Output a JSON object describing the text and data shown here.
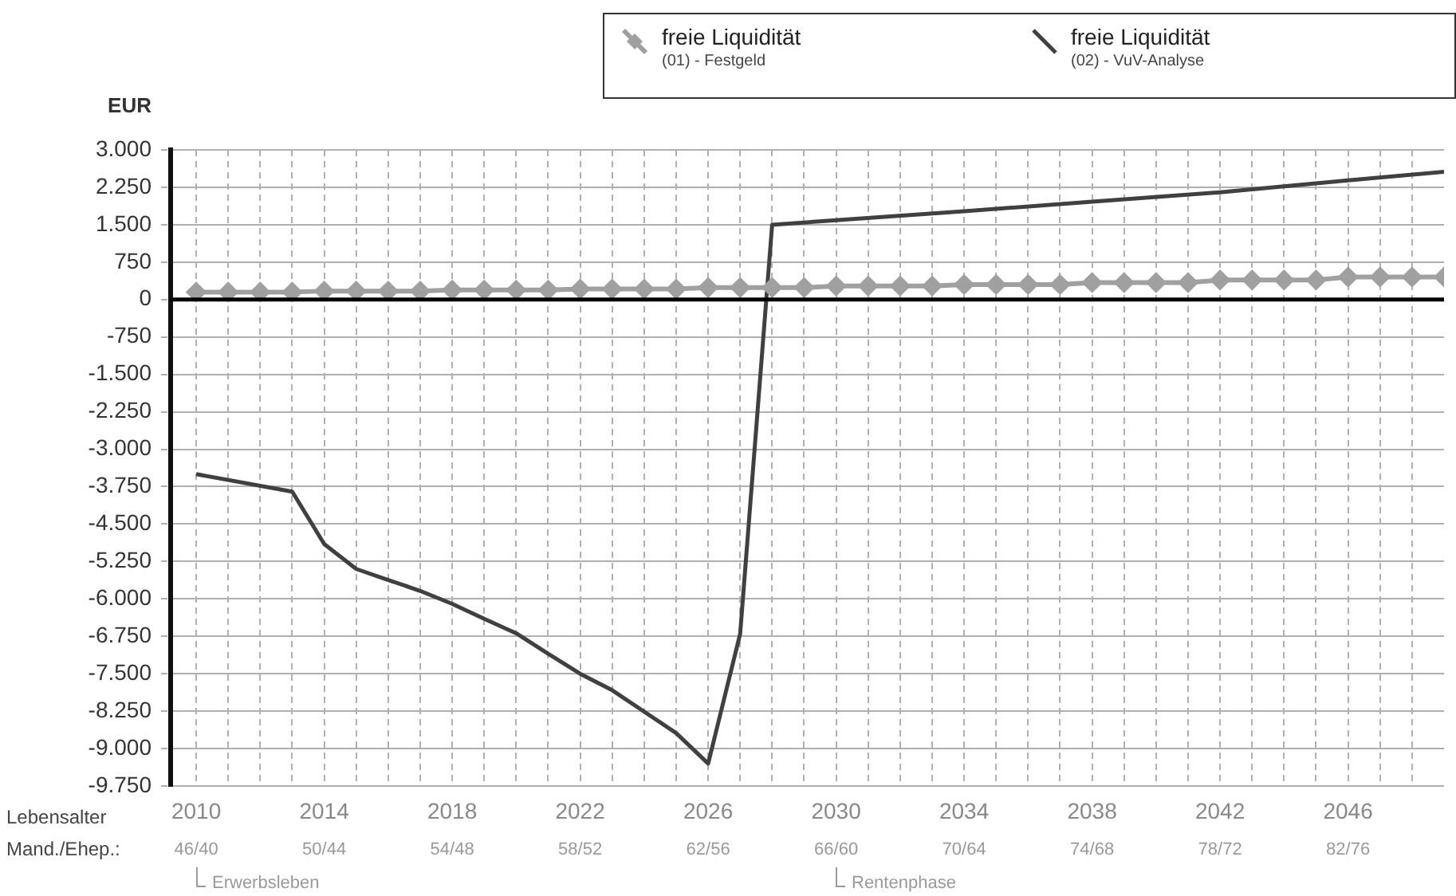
{
  "chart_data": {
    "type": "line",
    "ylabel": "EUR",
    "xlabel": "Lebensalter",
    "xlim": [
      2009.2,
      2049
    ],
    "ylim": [
      -9750,
      3000
    ],
    "xticks": [
      2010,
      {
        "value": 2011,
        "label": null
      },
      {
        "value": 2012,
        "label": null
      },
      {
        "value": 2013,
        "label": null
      },
      2014,
      {
        "value": 2015,
        "label": null
      },
      {
        "value": 2016,
        "label": null
      },
      {
        "value": 2017,
        "label": null
      },
      2018,
      {
        "value": 2019,
        "label": null
      },
      {
        "value": 2020,
        "label": null
      },
      {
        "value": 2021,
        "label": null
      },
      2022,
      {
        "value": 2023,
        "label": null
      },
      {
        "value": 2024,
        "label": null
      },
      {
        "value": 2025,
        "label": null
      },
      2026,
      {
        "value": 2027,
        "label": null
      },
      {
        "value": 2028,
        "label": null
      },
      {
        "value": 2029,
        "label": null
      },
      2030,
      {
        "value": 2031,
        "label": null
      },
      {
        "value": 2032,
        "label": null
      },
      {
        "value": 2033,
        "label": null
      },
      2034,
      {
        "value": 2035,
        "label": null
      },
      {
        "value": 2036,
        "label": null
      },
      {
        "value": 2037,
        "label": null
      },
      2038,
      {
        "value": 2039,
        "label": null
      },
      {
        "value": 2040,
        "label": null
      },
      {
        "value": 2041,
        "label": null
      },
      2042,
      {
        "value": 2043,
        "label": null
      },
      {
        "value": 2044,
        "label": null
      },
      {
        "value": 2045,
        "label": null
      },
      2046,
      {
        "value": 2047,
        "label": null
      },
      {
        "value": 2048,
        "label": null
      }
    ],
    "yticks": [
      {
        "value": 3000,
        "label": "3.000"
      },
      {
        "value": 2250,
        "label": "2.250"
      },
      {
        "value": 1500,
        "label": "1.500"
      },
      {
        "value": 750,
        "label": "750"
      },
      0,
      {
        "value": -750,
        "label": "-750"
      },
      {
        "value": -1500,
        "label": "-1.500"
      },
      {
        "value": -2250,
        "label": "-2.250"
      },
      {
        "value": -3000,
        "label": "-3.000"
      },
      {
        "value": -3750,
        "label": "-3.750"
      },
      {
        "value": -4500,
        "label": "-4.500"
      },
      {
        "value": -5250,
        "label": "-5.250"
      },
      {
        "value": -6000,
        "label": "-6.000"
      },
      {
        "value": -6750,
        "label": "-6.750"
      },
      {
        "value": -7500,
        "label": "-7.500"
      },
      {
        "value": -8250,
        "label": "-8.250"
      },
      {
        "value": -9000,
        "label": "-9.000"
      },
      {
        "value": -9750,
        "label": "-9.750"
      }
    ],
    "grid": true,
    "legend": "top right",
    "ref_lines": [
      {
        "axis": "y",
        "value": 0,
        "color": "#000000"
      }
    ],
    "annotations": [
      "Mand./Ehep.:",
      "46/40",
      "50/44",
      "54/48",
      "58/52",
      "62/56",
      "66/60",
      "70/64",
      "74/68",
      "78/72",
      "82/76",
      "Erwerbsleben",
      "Rentenphase"
    ],
    "series": [
      {
        "name": "freie Liquidität\n(01) - Festgeld",
        "color": "#a0a0a0",
        "marker": "diamond",
        "x": [
          2010,
          2011,
          2012,
          2013,
          2014,
          2015,
          2016,
          2017,
          2018,
          2019,
          2020,
          2021,
          2022,
          2023,
          2024,
          2025,
          2026,
          2027,
          2028,
          2029,
          2030,
          2031,
          2032,
          2033,
          2034,
          2035,
          2036,
          2037,
          2038,
          2039,
          2040,
          2041,
          2042,
          2043,
          2044,
          2045,
          2046,
          2047,
          2048,
          2049
        ],
        "values": [
          150,
          150,
          150,
          150,
          170,
          170,
          170,
          170,
          190,
          190,
          190,
          190,
          210,
          210,
          210,
          210,
          240,
          240,
          240,
          240,
          270,
          270,
          270,
          270,
          300,
          300,
          300,
          300,
          340,
          340,
          340,
          340,
          390,
          390,
          390,
          390,
          450,
          450,
          450,
          450
        ]
      },
      {
        "name": "freie Liquidität\n(02) - VuV-Analyse",
        "color": "#404040",
        "marker": "none",
        "x": [
          2010,
          2013,
          2014,
          2015,
          2016,
          2017,
          2018,
          2019,
          2020,
          2021,
          2022,
          2023,
          2024,
          2025,
          2026,
          2027,
          2028,
          2030,
          2034,
          2038,
          2042,
          2046,
          2049
        ],
        "values": [
          -3500,
          -3850,
          -4900,
          -5400,
          -5620,
          -5840,
          -6100,
          -6400,
          -6690,
          -7100,
          -7500,
          -7830,
          -8260,
          -8690,
          -9300,
          -6700,
          1500,
          1590,
          1770,
          1960,
          2150,
          2390,
          2560
        ]
      }
    ]
  }
}
